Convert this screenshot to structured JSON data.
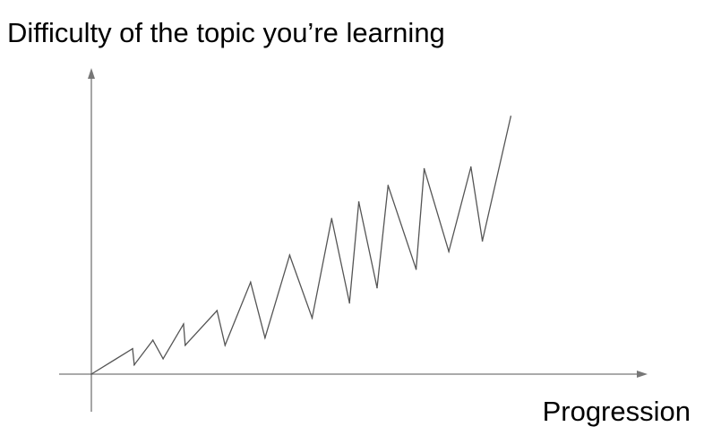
{
  "chart_data": {
    "type": "line",
    "ylabel": "Difficulty of the topic you’re learning",
    "xlabel": "Progression",
    "grid": false,
    "legend": "none",
    "xlim": [
      0,
      100
    ],
    "ylim": [
      0,
      100
    ],
    "series": [
      {
        "color": "#555555",
        "points": [
          [
            0,
            0
          ],
          [
            9.7,
            9.6
          ],
          [
            10.1,
            3.5
          ],
          [
            14.5,
            12.8
          ],
          [
            16.9,
            5.8
          ],
          [
            21.7,
            18.9
          ],
          [
            22.1,
            10.9
          ],
          [
            29.6,
            24.0
          ],
          [
            31.5,
            10.9
          ],
          [
            37.5,
            34.7
          ],
          [
            40.9,
            13.7
          ],
          [
            46.7,
            44.9
          ],
          [
            52.0,
            21.2
          ],
          [
            56.6,
            58.7
          ],
          [
            60.8,
            26.9
          ],
          [
            63.0,
            65.0
          ],
          [
            67.3,
            32.6
          ],
          [
            69.9,
            71.2
          ],
          [
            76.5,
            39.6
          ],
          [
            78.4,
            77.5
          ],
          [
            84.2,
            46.3
          ],
          [
            89.4,
            78.2
          ],
          [
            92.1,
            50.3
          ],
          [
            98.8,
            97.3
          ]
        ]
      }
    ]
  }
}
